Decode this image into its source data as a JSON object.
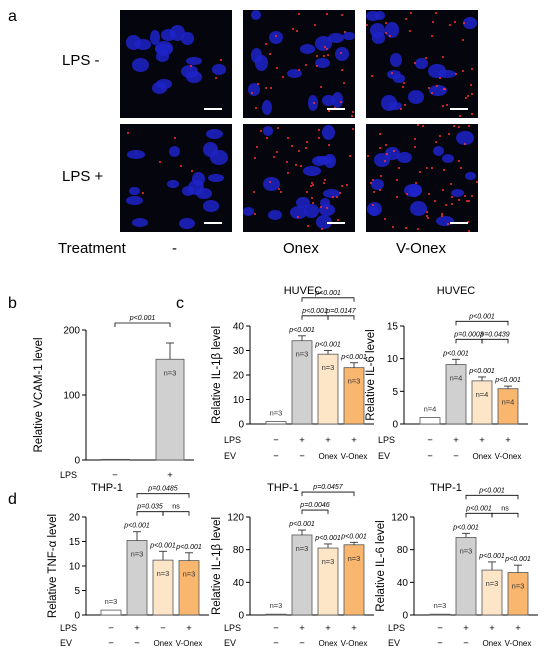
{
  "panel_a": {
    "letter": "a",
    "rows": [
      {
        "label": "LPS -"
      },
      {
        "label": "LPS +"
      }
    ],
    "treatment_label": "Treatment",
    "columns": [
      {
        "label": "-"
      },
      {
        "label": "Onex"
      },
      {
        "label": "V-Onex"
      }
    ],
    "red_density": [
      [
        3,
        35,
        40
      ],
      [
        6,
        45,
        60
      ]
    ]
  },
  "colors": {
    "gray": "#d0d0d0",
    "light": "#fde6c8",
    "orange": "#f8b66f",
    "control": "#ffffff"
  },
  "chart_data": [
    {
      "id": "b",
      "letter": "b",
      "type": "bar",
      "title": "",
      "ylabel": "Relative VCAM-1 level",
      "ylim": [
        0,
        200
      ],
      "ticks": [
        0,
        100,
        200
      ],
      "values": [
        1,
        155
      ],
      "errors": [
        0,
        25
      ],
      "colors": [
        "control",
        "gray"
      ],
      "n_labels": [
        "",
        "n=3"
      ],
      "rows": [
        {
          "name": "LPS",
          "cells": [
            "−",
            "+"
          ]
        }
      ],
      "brackets": [
        {
          "from": 0,
          "to": 1,
          "text": "p<0.001"
        }
      ],
      "bar_p": [
        "",
        ""
      ]
    },
    {
      "id": "c1",
      "letter": "c",
      "type": "bar",
      "title": "HUVEC",
      "ylabel": "Relative IL-1β level",
      "ylim": [
        0,
        40
      ],
      "ticks": [
        0,
        10,
        20,
        30,
        40
      ],
      "values": [
        1,
        34,
        28.5,
        23
      ],
      "errors": [
        0,
        2,
        1.5,
        2
      ],
      "colors": [
        "control",
        "gray",
        "light",
        "orange"
      ],
      "n_labels": [
        "n=3",
        "n=3",
        "n=3",
        "n=3"
      ],
      "rows": [
        {
          "name": "LPS",
          "cells": [
            "−",
            "+",
            "+",
            "+"
          ]
        },
        {
          "name": "EV",
          "cells": [
            "−",
            "−",
            "Onex",
            "V-Onex"
          ]
        }
      ],
      "brackets": [
        {
          "from": 1,
          "to": 2,
          "text": "p<0.001"
        },
        {
          "from": 2,
          "to": 3,
          "text": "p=0.0147"
        },
        {
          "from": 1,
          "to": 3,
          "text": "p<0.001"
        }
      ],
      "bar_p": [
        "",
        "p<0.001",
        "p<0.001",
        "p<0.001"
      ]
    },
    {
      "id": "c2",
      "letter": "",
      "type": "bar",
      "title": "HUVEC",
      "ylabel": "Relative IL-6 level",
      "ylim": [
        0,
        15
      ],
      "ticks": [
        0,
        5,
        10,
        15
      ],
      "values": [
        1,
        9.1,
        6.6,
        5.4
      ],
      "errors": [
        0,
        0.8,
        0.6,
        0.4
      ],
      "colors": [
        "control",
        "gray",
        "light",
        "orange"
      ],
      "n_labels": [
        "n=4",
        "n=4",
        "n=4",
        "n=4"
      ],
      "rows": [
        {
          "name": "LPS",
          "cells": [
            "−",
            "+",
            "+",
            "+"
          ]
        },
        {
          "name": "EV",
          "cells": [
            "−",
            "−",
            "Onex",
            "V-Onex"
          ]
        }
      ],
      "brackets": [
        {
          "from": 1,
          "to": 2,
          "text": "p=0.0003"
        },
        {
          "from": 2,
          "to": 3,
          "text": "p=0.0439"
        },
        {
          "from": 1,
          "to": 3,
          "text": "p<0.001"
        }
      ],
      "bar_p": [
        "",
        "p<0.001",
        "p<0.001",
        "p<0.001"
      ]
    },
    {
      "id": "d1",
      "letter": "d",
      "type": "bar",
      "title": "THP-1",
      "ylabel": "Relative TNF-α level",
      "ylim": [
        0,
        20
      ],
      "ticks": [
        0,
        5,
        10,
        15,
        20
      ],
      "values": [
        1,
        15.2,
        11.2,
        11.1
      ],
      "errors": [
        0,
        1.8,
        1.8,
        1.6
      ],
      "colors": [
        "control",
        "gray",
        "light",
        "orange"
      ],
      "n_labels": [
        "n=3",
        "n=3",
        "n=3",
        "n=3"
      ],
      "rows": [
        {
          "name": "LPS",
          "cells": [
            "−",
            "+",
            "−",
            "+"
          ]
        },
        {
          "name": "EV",
          "cells": [
            "−",
            "−",
            "Onex",
            "V-Onex"
          ]
        }
      ],
      "brackets": [
        {
          "from": 1,
          "to": 2,
          "text": "p=0.035"
        },
        {
          "from": 2,
          "to": 3,
          "text": "ns"
        },
        {
          "from": 1,
          "to": 3,
          "text": "p=0.0485"
        }
      ],
      "bar_p": [
        "",
        "p<0.001",
        "p<0.001",
        "p<0.001"
      ]
    },
    {
      "id": "d2",
      "letter": "",
      "type": "bar",
      "title": "THP-1",
      "ylabel": "Relative IL-1β level",
      "ylim": [
        0,
        120
      ],
      "ticks": [
        0,
        40,
        80,
        120
      ],
      "values": [
        1,
        98,
        82,
        86
      ],
      "errors": [
        0,
        6,
        5,
        3
      ],
      "colors": [
        "control",
        "gray",
        "light",
        "orange"
      ],
      "n_labels": [
        "n=3",
        "n=3",
        "n=3",
        "n=3"
      ],
      "rows": [
        {
          "name": "LPS",
          "cells": [
            "−",
            "+",
            "+",
            "+"
          ]
        },
        {
          "name": "EV",
          "cells": [
            "−",
            "−",
            "Onex",
            "V-Onex"
          ]
        }
      ],
      "brackets": [
        {
          "from": 1,
          "to": 2,
          "text": "p=0.0046"
        },
        {
          "from": 1,
          "to": 3,
          "text": "p=0.0457"
        }
      ],
      "bar_p": [
        "",
        "p<0.001",
        "p<0.001",
        "p<0.001"
      ]
    },
    {
      "id": "d3",
      "letter": "",
      "type": "bar",
      "title": "THP-1",
      "ylabel": "Relative IL-6 level",
      "ylim": [
        0,
        120
      ],
      "ticks": [
        0,
        40,
        80,
        120
      ],
      "values": [
        1,
        95,
        55,
        52
      ],
      "errors": [
        0,
        5,
        10,
        9
      ],
      "colors": [
        "control",
        "gray",
        "light",
        "orange"
      ],
      "n_labels": [
        "n=3",
        "n=3",
        "n=3",
        "n=3"
      ],
      "rows": [
        {
          "name": "LPS",
          "cells": [
            "−",
            "+",
            "+",
            "+"
          ]
        },
        {
          "name": "EV",
          "cells": [
            "−",
            "−",
            "Onex",
            "V-Onex"
          ]
        }
      ],
      "brackets": [
        {
          "from": 1,
          "to": 2,
          "text": "p<0.001"
        },
        {
          "from": 2,
          "to": 3,
          "text": "ns"
        },
        {
          "from": 1,
          "to": 3,
          "text": "p<0.001"
        }
      ],
      "bar_p": [
        "",
        "p<0.001",
        "p<0.001",
        "p<0.001"
      ]
    }
  ]
}
